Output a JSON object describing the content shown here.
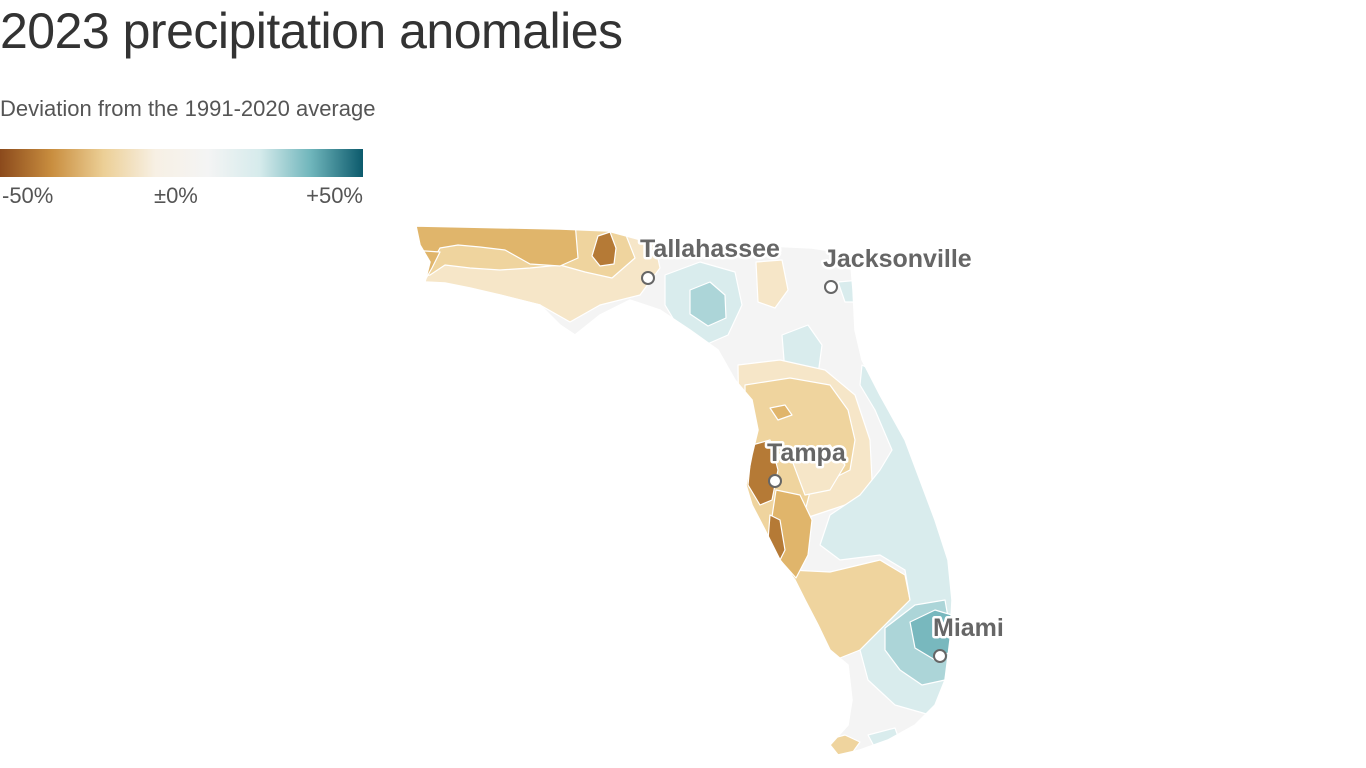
{
  "title": "2023 precipitation anomalies",
  "subtitle": "Deviation from the 1991-2020 average",
  "legend": {
    "min_label": "-50%",
    "mid_label": "±0%",
    "max_label": "+50%",
    "colors": [
      "#8b4a1c",
      "#c98e3f",
      "#eccf96",
      "#f7f0e4",
      "#f4f4f4",
      "#d6ebec",
      "#6fb5bb",
      "#0c5a6c"
    ]
  },
  "palette": {
    "strong_dry": "#b57a36",
    "dry": "#e0b56b",
    "moderate_dry": "#efd49e",
    "slight_dry": "#f6e6c8",
    "neutral": "#f4f4f4",
    "slight_wet": "#d9eced",
    "wet": "#acd5d8",
    "strong_wet": "#78b8be"
  },
  "cities": [
    {
      "name": "Tallahassee"
    },
    {
      "name": "Jacksonville"
    },
    {
      "name": "Tampa"
    },
    {
      "name": "Miami"
    }
  ]
}
